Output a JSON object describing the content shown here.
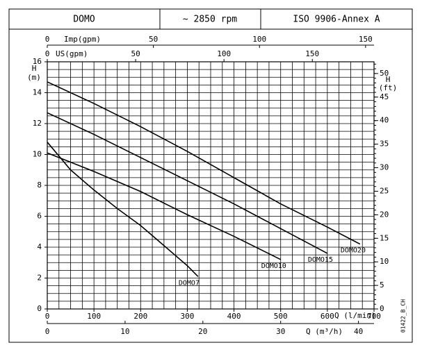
{
  "header": {
    "cells": [
      "DOMO",
      "~ 2850 rpm",
      "ISO 9906-Annex A"
    ]
  },
  "chart_data": {
    "type": "line",
    "x_label": "Q (l/min)",
    "y_label": "H",
    "y_unit": "(m)",
    "y2_label": "H",
    "y2_unit": "(ft)",
    "code": "01422_B_CH",
    "xlim": [
      0,
      700
    ],
    "xticks": [
      0,
      100,
      200,
      300,
      400,
      500,
      600,
      700
    ],
    "ylim": [
      0,
      16
    ],
    "yticks": [
      0,
      2,
      4,
      6,
      8,
      10,
      12,
      14,
      16
    ],
    "y2lim": [
      0,
      52.49
    ],
    "y2ticks": [
      0,
      5,
      10,
      15,
      20,
      25,
      30,
      35,
      40,
      45,
      50
    ],
    "grid": true,
    "grid_x_step": 25,
    "grid_y_step": 0.5,
    "y2_minor_step": 1,
    "color": "#000000",
    "extra_axes": [
      {
        "position": "top",
        "label": "Imp(gpm)",
        "lim": [
          0,
          153.98
        ],
        "ticks": [
          0,
          50,
          100,
          150
        ]
      },
      {
        "position": "top",
        "label": "US(gpm)",
        "lim": [
          0,
          184.92
        ],
        "ticks": [
          0,
          50,
          100,
          150
        ]
      },
      {
        "position": "bottom",
        "label": "Q (m³/h)",
        "lim": [
          0,
          42
        ],
        "ticks": [
          0,
          10,
          20,
          30,
          40
        ]
      }
    ],
    "series": [
      {
        "name": "DOMO20",
        "x": [
          0,
          100,
          200,
          300,
          400,
          500,
          600,
          670
        ],
        "values": [
          14.7,
          13.3,
          11.8,
          10.2,
          8.5,
          6.8,
          5.3,
          4.2
        ]
      },
      {
        "name": "DOMO15",
        "x": [
          0,
          100,
          200,
          300,
          400,
          500,
          600
        ],
        "values": [
          12.7,
          11.3,
          9.8,
          8.3,
          6.8,
          5.2,
          3.6
        ]
      },
      {
        "name": "DOMO10",
        "x": [
          0,
          100,
          200,
          300,
          400,
          500
        ],
        "values": [
          10.1,
          8.9,
          7.6,
          6.1,
          4.7,
          3.2
        ]
      },
      {
        "name": "DOMO7",
        "x": [
          0,
          50,
          100,
          150,
          200,
          250,
          300,
          323
        ],
        "values": [
          10.8,
          9.0,
          7.7,
          6.5,
          5.4,
          4.1,
          2.8,
          2.1
        ]
      }
    ]
  }
}
